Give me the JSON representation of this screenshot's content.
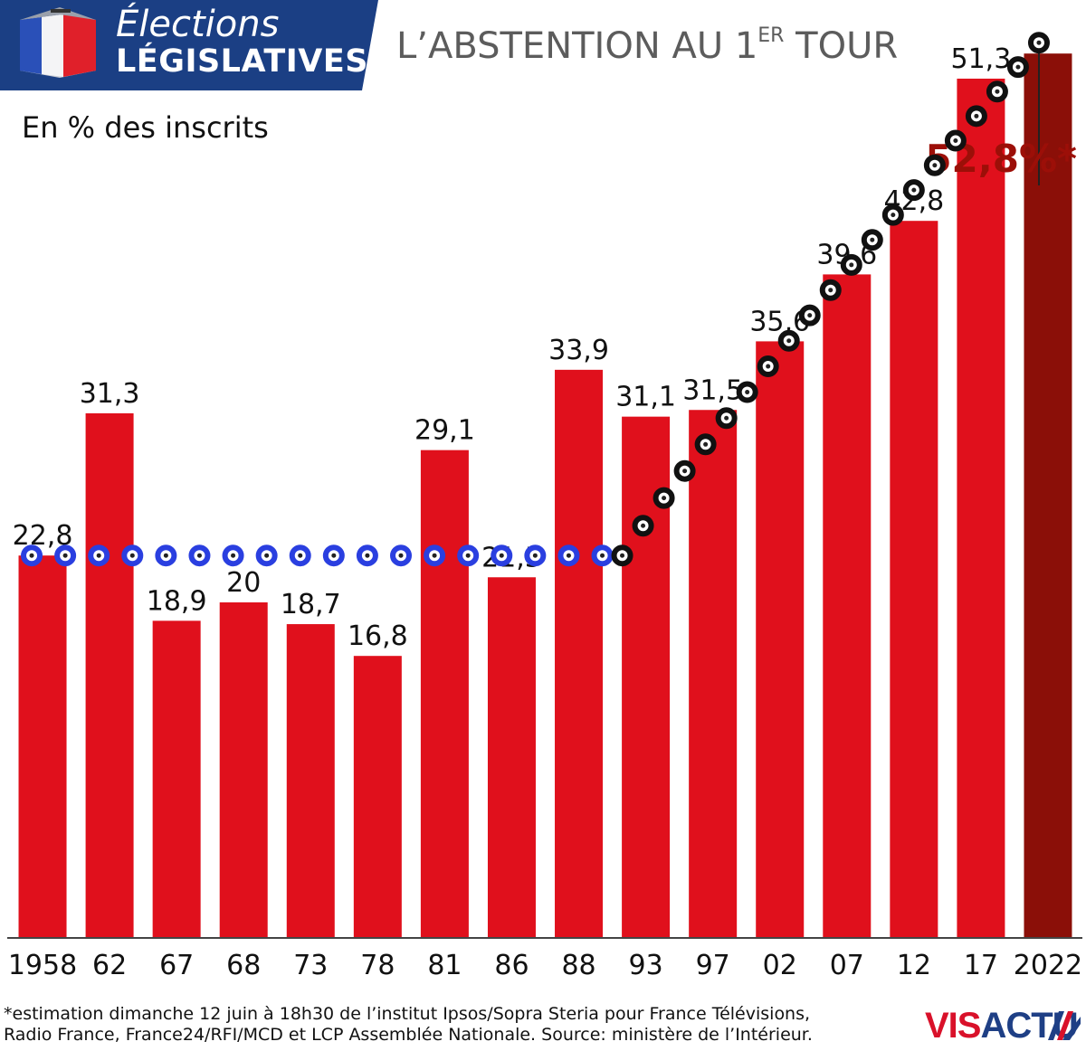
{
  "header": {
    "badge_line1": "Élections",
    "badge_line2": "LÉGISLATIVES",
    "title_main": "L’ABSTENTION AU 1",
    "title_sup": "ER",
    "title_end": " TOUR"
  },
  "colors": {
    "badge_bg": "#1b3f84",
    "bar": "#e0101c",
    "bar_highlight": "#8b0f08",
    "estimate_label": "#9c0f08",
    "dots_blue": "#2a3fe0",
    "dots_black": "#111111"
  },
  "chart_data": {
    "type": "bar",
    "subtitle": "En % des inscrits",
    "categories": [
      "1958",
      "62",
      "67",
      "68",
      "73",
      "78",
      "81",
      "86",
      "88",
      "93",
      "97",
      "02",
      "07",
      "12",
      "17",
      "2022"
    ],
    "values": [
      22.8,
      31.3,
      18.9,
      20,
      18.7,
      16.8,
      29.1,
      21.5,
      33.9,
      31.1,
      31.5,
      35.6,
      39.6,
      42.8,
      51.3,
      52.8
    ],
    "value_labels": [
      "22,8",
      "31,3",
      "18,9",
      "20",
      "18,7",
      "16,8",
      "29,1",
      "21,5",
      "33,9",
      "31,1",
      "31,5",
      "35,6",
      "39,6",
      "42,8",
      "51,3",
      "52,8%*"
    ],
    "highlight_index": 15,
    "ylim": [
      0,
      56
    ],
    "grid": false,
    "legend": "none"
  },
  "footnote": {
    "line1": "*estimation dimanche 12 juin à 18h30 de l’institut Ipsos/Sopra Steria pour France Télévisions,",
    "line2": "Radio France, France24/RFI/MCD et LCP Assemblée Nationale.  Source: ministère de l’Intérieur."
  },
  "logo": {
    "part1": "VIS",
    "part2": "ACTU"
  }
}
